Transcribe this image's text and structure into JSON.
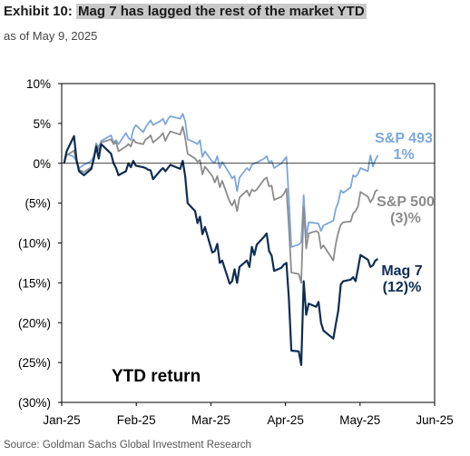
{
  "header": {
    "exhibit": "Exhibit 10:",
    "title": "Mag 7 has lagged the rest of the market YTD",
    "subtitle": "as of May 9, 2025"
  },
  "footer": {
    "source": "Source: Goldman Sachs Global Investment Research"
  },
  "colors": {
    "sp493": "#7da7d9",
    "sp500": "#8c8c8c",
    "mag7": "#0d2d52",
    "axis": "#000000"
  },
  "chart_data": {
    "type": "line",
    "annotation": "YTD return",
    "x_tick_labels": [
      "Jan-25",
      "Feb-25",
      "Mar-25",
      "Apr-25",
      "May-25",
      "Jun-25"
    ],
    "y_tick_labels": [
      "10%",
      "5%",
      "0%",
      "(5%)",
      "(10%)",
      "(15%)",
      "(20%)",
      "(25%)",
      "(30%)"
    ],
    "xlim": [
      "2025-01-01",
      "2025-06-01"
    ],
    "ylim": [
      -30,
      10
    ],
    "grid": false,
    "series": [
      {
        "name": "S&P 493",
        "end_label": "1%",
        "color": "#7da7d9",
        "dates": [
          "2025-01-02",
          "2025-01-03",
          "2025-01-06",
          "2025-01-07",
          "2025-01-08",
          "2025-01-10",
          "2025-01-13",
          "2025-01-14",
          "2025-01-15",
          "2025-01-16",
          "2025-01-17",
          "2025-01-21",
          "2025-01-22",
          "2025-01-23",
          "2025-01-24",
          "2025-01-27",
          "2025-01-28",
          "2025-01-29",
          "2025-01-30",
          "2025-01-31",
          "2025-02-03",
          "2025-02-04",
          "2025-02-05",
          "2025-02-06",
          "2025-02-07",
          "2025-02-10",
          "2025-02-11",
          "2025-02-12",
          "2025-02-13",
          "2025-02-14",
          "2025-02-18",
          "2025-02-19",
          "2025-02-20",
          "2025-02-21",
          "2025-02-24",
          "2025-02-25",
          "2025-02-26",
          "2025-02-27",
          "2025-02-28",
          "2025-03-03",
          "2025-03-04",
          "2025-03-05",
          "2025-03-06",
          "2025-03-07",
          "2025-03-10",
          "2025-03-11",
          "2025-03-12",
          "2025-03-13",
          "2025-03-14",
          "2025-03-17",
          "2025-03-18",
          "2025-03-19",
          "2025-03-20",
          "2025-03-21",
          "2025-03-24",
          "2025-03-25",
          "2025-03-26",
          "2025-03-27",
          "2025-03-28",
          "2025-03-31",
          "2025-04-01",
          "2025-04-02",
          "2025-04-03",
          "2025-04-04",
          "2025-04-07",
          "2025-04-08",
          "2025-04-09",
          "2025-04-10",
          "2025-04-11",
          "2025-04-14",
          "2025-04-15",
          "2025-04-16",
          "2025-04-17",
          "2025-04-21",
          "2025-04-22",
          "2025-04-23",
          "2025-04-24",
          "2025-04-25",
          "2025-04-28",
          "2025-04-29",
          "2025-04-30",
          "2025-05-01",
          "2025-05-02",
          "2025-05-05",
          "2025-05-06",
          "2025-05-07",
          "2025-05-08",
          "2025-05-09"
        ],
        "values": [
          0.0,
          1.2,
          0.8,
          0.2,
          -0.6,
          -0.2,
          0.3,
          0.9,
          2.5,
          2.0,
          2.8,
          3.5,
          2.6,
          2.9,
          2.4,
          3.8,
          3.2,
          2.9,
          4.2,
          4.8,
          3.9,
          4.5,
          5.0,
          5.4,
          4.8,
          5.3,
          5.6,
          4.9,
          5.5,
          5.9,
          5.6,
          6.2,
          5.3,
          3.0,
          2.6,
          2.4,
          2.9,
          0.8,
          1.5,
          0.2,
          0.1,
          0.9,
          -0.6,
          0.2,
          -1.3,
          -1.9,
          -1.6,
          -3.5,
          -1.8,
          -0.6,
          -0.9,
          -0.2,
          0.0,
          0.1,
          0.6,
          0.9,
          0.1,
          0.3,
          -0.6,
          0.0,
          0.4,
          0.8,
          -4.5,
          -10.5,
          -10.2,
          -9.9,
          -4.0,
          -9.3,
          -7.4,
          -7.5,
          -7.6,
          -8.5,
          -7.8,
          -7.2,
          -5.7,
          -4.9,
          -3.4,
          -3.7,
          -3.0,
          -1.5,
          -1.7,
          -1.3,
          -0.6,
          -1.0,
          1.0,
          -0.4,
          0.4,
          1.0
        ]
      },
      {
        "name": "S&P 500",
        "end_label": "(3)%",
        "color": "#8c8c8c",
        "dates": [
          "2025-01-02",
          "2025-01-03",
          "2025-01-06",
          "2025-01-07",
          "2025-01-08",
          "2025-01-10",
          "2025-01-13",
          "2025-01-14",
          "2025-01-15",
          "2025-01-16",
          "2025-01-17",
          "2025-01-21",
          "2025-01-22",
          "2025-01-23",
          "2025-01-24",
          "2025-01-27",
          "2025-01-28",
          "2025-01-29",
          "2025-01-30",
          "2025-01-31",
          "2025-02-03",
          "2025-02-04",
          "2025-02-05",
          "2025-02-06",
          "2025-02-07",
          "2025-02-10",
          "2025-02-11",
          "2025-02-12",
          "2025-02-13",
          "2025-02-14",
          "2025-02-18",
          "2025-02-19",
          "2025-02-20",
          "2025-02-21",
          "2025-02-24",
          "2025-02-25",
          "2025-02-26",
          "2025-02-27",
          "2025-02-28",
          "2025-03-03",
          "2025-03-04",
          "2025-03-05",
          "2025-03-06",
          "2025-03-07",
          "2025-03-10",
          "2025-03-11",
          "2025-03-12",
          "2025-03-13",
          "2025-03-14",
          "2025-03-17",
          "2025-03-18",
          "2025-03-19",
          "2025-03-20",
          "2025-03-21",
          "2025-03-24",
          "2025-03-25",
          "2025-03-26",
          "2025-03-27",
          "2025-03-28",
          "2025-03-31",
          "2025-04-01",
          "2025-04-02",
          "2025-04-03",
          "2025-04-04",
          "2025-04-07",
          "2025-04-08",
          "2025-04-09",
          "2025-04-10",
          "2025-04-11",
          "2025-04-14",
          "2025-04-15",
          "2025-04-16",
          "2025-04-17",
          "2025-04-21",
          "2025-04-22",
          "2025-04-23",
          "2025-04-24",
          "2025-04-25",
          "2025-04-28",
          "2025-04-29",
          "2025-04-30",
          "2025-05-01",
          "2025-05-02",
          "2025-05-05",
          "2025-05-06",
          "2025-05-07",
          "2025-05-08",
          "2025-05-09"
        ],
        "values": [
          0.0,
          1.0,
          1.6,
          0.2,
          -0.8,
          -1.1,
          -0.5,
          0.4,
          2.3,
          1.6,
          2.6,
          3.0,
          2.4,
          2.7,
          1.5,
          2.1,
          2.4,
          2.1,
          3.0,
          2.6,
          2.4,
          3.0,
          3.2,
          3.5,
          2.6,
          3.4,
          3.8,
          2.8,
          3.5,
          4.0,
          3.6,
          4.6,
          3.2,
          1.2,
          0.6,
          0.2,
          0.4,
          -1.4,
          -0.4,
          -1.6,
          -2.4,
          -1.6,
          -3.0,
          -2.2,
          -4.8,
          -5.3,
          -4.6,
          -6.0,
          -4.3,
          -3.4,
          -4.1,
          -3.3,
          -3.5,
          -3.3,
          -2.0,
          -1.8,
          -2.9,
          -2.8,
          -4.6,
          -4.2,
          -3.8,
          -3.2,
          -8.0,
          -13.7,
          -13.9,
          -15.0,
          -5.5,
          -10.7,
          -8.8,
          -8.5,
          -8.7,
          -10.7,
          -10.3,
          -12.2,
          -10.1,
          -8.7,
          -7.7,
          -7.4,
          -7.3,
          -6.3,
          -6.0,
          -5.4,
          -3.6,
          -4.2,
          -4.9,
          -4.4,
          -3.5,
          -3.3
        ]
      },
      {
        "name": "Mag 7",
        "end_label": "(12)%",
        "color": "#0d2d52",
        "dates": [
          "2025-01-02",
          "2025-01-03",
          "2025-01-06",
          "2025-01-07",
          "2025-01-08",
          "2025-01-10",
          "2025-01-13",
          "2025-01-14",
          "2025-01-15",
          "2025-01-16",
          "2025-01-17",
          "2025-01-21",
          "2025-01-22",
          "2025-01-23",
          "2025-01-24",
          "2025-01-27",
          "2025-01-28",
          "2025-01-29",
          "2025-01-30",
          "2025-01-31",
          "2025-02-03",
          "2025-02-04",
          "2025-02-05",
          "2025-02-06",
          "2025-02-07",
          "2025-02-10",
          "2025-02-11",
          "2025-02-12",
          "2025-02-13",
          "2025-02-14",
          "2025-02-18",
          "2025-02-19",
          "2025-02-20",
          "2025-02-21",
          "2025-02-24",
          "2025-02-25",
          "2025-02-26",
          "2025-02-27",
          "2025-02-28",
          "2025-03-03",
          "2025-03-04",
          "2025-03-05",
          "2025-03-06",
          "2025-03-07",
          "2025-03-10",
          "2025-03-11",
          "2025-03-12",
          "2025-03-13",
          "2025-03-14",
          "2025-03-17",
          "2025-03-18",
          "2025-03-19",
          "2025-03-20",
          "2025-03-21",
          "2025-03-24",
          "2025-03-25",
          "2025-03-26",
          "2025-03-27",
          "2025-03-28",
          "2025-03-31",
          "2025-04-01",
          "2025-04-02",
          "2025-04-03",
          "2025-04-04",
          "2025-04-07",
          "2025-04-08",
          "2025-04-09",
          "2025-04-10",
          "2025-04-11",
          "2025-04-14",
          "2025-04-15",
          "2025-04-16",
          "2025-04-17",
          "2025-04-21",
          "2025-04-22",
          "2025-04-23",
          "2025-04-24",
          "2025-04-25",
          "2025-04-28",
          "2025-04-29",
          "2025-04-30",
          "2025-05-01",
          "2025-05-02",
          "2025-05-05",
          "2025-05-06",
          "2025-05-07",
          "2025-05-08",
          "2025-05-09"
        ],
        "values": [
          0.0,
          1.5,
          3.4,
          0.5,
          -1.0,
          -1.5,
          -0.7,
          0.6,
          2.1,
          0.6,
          2.4,
          1.2,
          0.0,
          -0.6,
          -1.5,
          -1.0,
          0.0,
          -0.5,
          0.3,
          -0.3,
          -0.5,
          -0.6,
          -0.8,
          -0.9,
          -2.0,
          -0.9,
          -0.6,
          -1.0,
          -0.6,
          -0.2,
          -0.7,
          0.3,
          -1.6,
          -5.0,
          -6.0,
          -7.5,
          -6.7,
          -8.9,
          -8.0,
          -11.2,
          -11.0,
          -10.1,
          -12.5,
          -12.2,
          -15.1,
          -14.8,
          -13.3,
          -15.0,
          -13.0,
          -12.2,
          -13.0,
          -10.5,
          -11.5,
          -10.2,
          -9.2,
          -8.8,
          -11.0,
          -11.6,
          -13.5,
          -13.1,
          -12.7,
          -12.5,
          -17.0,
          -23.5,
          -23.6,
          -25.3,
          -14.8,
          -19.0,
          -17.6,
          -18.0,
          -17.4,
          -20.0,
          -21.0,
          -22.0,
          -20.2,
          -18.5,
          -15.2,
          -14.8,
          -14.6,
          -14.3,
          -14.8,
          -13.2,
          -11.5,
          -12.1,
          -13.0,
          -12.8,
          -12.2,
          -12.0
        ]
      }
    ]
  }
}
